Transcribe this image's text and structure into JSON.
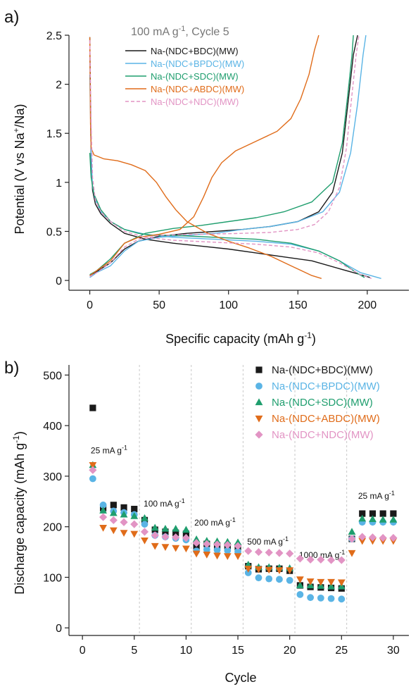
{
  "colors": {
    "NDC_BDC": "#1a1a1a",
    "NDC_BPDC": "#5ab4e5",
    "NDC_SDC": "#1f9e6e",
    "NDC_ABDC": "#e06c1a",
    "NDC_NDC": "#e294c4",
    "axis": "#222222",
    "divider": "#c8c8c8"
  },
  "chart_data": [
    {
      "panel_label": "a)",
      "type": "line",
      "title_main": "100 mA g",
      "title_sup": "-1",
      "title_tail": ", Cycle 5",
      "xlabel_main": "Specific capacity (mAh g",
      "xlabel_sup": "-1",
      "xlabel_tail": ")",
      "ylabel_pre": "Potential (V vs Na",
      "ylabel_sup": "+",
      "ylabel_post": "/Na)",
      "xlim": [
        -15,
        230
      ],
      "ylim": [
        -0.1,
        2.5
      ],
      "x_ticks": [
        0,
        50,
        100,
        150,
        200
      ],
      "x_tick_labels": [
        "0",
        "50",
        "100",
        "150",
        "200"
      ],
      "y_ticks": [
        0,
        0.5,
        1,
        1.5,
        2,
        2.5
      ],
      "y_tick_labels": [
        "0",
        "0.5",
        "1",
        "1.5",
        "2",
        "2.5"
      ],
      "legend_position": "top-left",
      "series": [
        {
          "name": "Na-(NDC+BDC)(MW)",
          "color_key": "NDC_BDC",
          "dash": false,
          "discharge": [
            [
              0,
              2.48
            ],
            [
              0.5,
              1.8
            ],
            [
              1,
              1.2
            ],
            [
              2,
              0.92
            ],
            [
              4,
              0.78
            ],
            [
              8,
              0.68
            ],
            [
              15,
              0.58
            ],
            [
              25,
              0.48
            ],
            [
              40,
              0.42
            ],
            [
              60,
              0.38
            ],
            [
              80,
              0.35
            ],
            [
              100,
              0.32
            ],
            [
              120,
              0.28
            ],
            [
              140,
              0.24
            ],
            [
              160,
              0.2
            ],
            [
              180,
              0.12
            ],
            [
              195,
              0.06
            ],
            [
              202,
              0.03
            ]
          ],
          "charge": [
            [
              0,
              0.05
            ],
            [
              5,
              0.09
            ],
            [
              15,
              0.18
            ],
            [
              25,
              0.32
            ],
            [
              35,
              0.4
            ],
            [
              50,
              0.45
            ],
            [
              70,
              0.48
            ],
            [
              90,
              0.5
            ],
            [
              110,
              0.52
            ],
            [
              130,
              0.55
            ],
            [
              150,
              0.6
            ],
            [
              165,
              0.7
            ],
            [
              175,
              0.9
            ],
            [
              182,
              1.3
            ],
            [
              186,
              1.8
            ],
            [
              190,
              2.3
            ],
            [
              193,
              2.5
            ]
          ]
        },
        {
          "name": "Na-(NDC+BPDC)(MW)",
          "color_key": "NDC_BPDC",
          "dash": false,
          "discharge": [
            [
              0,
              2.1
            ],
            [
              1,
              1.3
            ],
            [
              2,
              0.95
            ],
            [
              4,
              0.82
            ],
            [
              8,
              0.7
            ],
            [
              15,
              0.6
            ],
            [
              25,
              0.52
            ],
            [
              40,
              0.47
            ],
            [
              60,
              0.44
            ],
            [
              90,
              0.42
            ],
            [
              120,
              0.4
            ],
            [
              145,
              0.37
            ],
            [
              165,
              0.3
            ],
            [
              180,
              0.2
            ],
            [
              195,
              0.08
            ],
            [
              210,
              0.02
            ]
          ],
          "charge": [
            [
              0,
              0.03
            ],
            [
              5,
              0.08
            ],
            [
              15,
              0.15
            ],
            [
              25,
              0.3
            ],
            [
              35,
              0.4
            ],
            [
              50,
              0.44
            ],
            [
              70,
              0.46
            ],
            [
              90,
              0.48
            ],
            [
              110,
              0.52
            ],
            [
              130,
              0.55
            ],
            [
              150,
              0.6
            ],
            [
              168,
              0.7
            ],
            [
              180,
              0.9
            ],
            [
              188,
              1.3
            ],
            [
              193,
              1.8
            ],
            [
              197,
              2.3
            ],
            [
              199,
              2.5
            ]
          ]
        },
        {
          "name": "Na-(NDC+SDC)(MW)",
          "color_key": "NDC_SDC",
          "dash": false,
          "discharge": [
            [
              0,
              1.3
            ],
            [
              1,
              1.05
            ],
            [
              3,
              0.88
            ],
            [
              8,
              0.72
            ],
            [
              15,
              0.6
            ],
            [
              25,
              0.52
            ],
            [
              35,
              0.48
            ],
            [
              45,
              0.46
            ],
            [
              60,
              0.46
            ],
            [
              90,
              0.44
            ],
            [
              120,
              0.42
            ],
            [
              145,
              0.38
            ],
            [
              165,
              0.3
            ],
            [
              180,
              0.2
            ],
            [
              192,
              0.08
            ],
            [
              198,
              0.03
            ]
          ],
          "charge": [
            [
              0,
              0.06
            ],
            [
              5,
              0.1
            ],
            [
              15,
              0.22
            ],
            [
              25,
              0.38
            ],
            [
              40,
              0.48
            ],
            [
              60,
              0.53
            ],
            [
              80,
              0.56
            ],
            [
              100,
              0.6
            ],
            [
              120,
              0.64
            ],
            [
              140,
              0.7
            ],
            [
              160,
              0.8
            ],
            [
              175,
              1.0
            ],
            [
              182,
              1.4
            ],
            [
              186,
              1.9
            ],
            [
              189,
              2.3
            ],
            [
              190,
              2.5
            ]
          ]
        },
        {
          "name": "Na-(NDC+ABDC)(MW)",
          "color_key": "NDC_ABDC",
          "dash": false,
          "discharge": [
            [
              0,
              2.48
            ],
            [
              0.5,
              1.6
            ],
            [
              1,
              1.35
            ],
            [
              3,
              1.28
            ],
            [
              10,
              1.24
            ],
            [
              20,
              1.22
            ],
            [
              30,
              1.18
            ],
            [
              40,
              1.12
            ],
            [
              48,
              1.0
            ],
            [
              55,
              0.85
            ],
            [
              62,
              0.72
            ],
            [
              70,
              0.6
            ],
            [
              85,
              0.48
            ],
            [
              100,
              0.4
            ],
            [
              115,
              0.33
            ],
            [
              130,
              0.25
            ],
            [
              145,
              0.15
            ],
            [
              160,
              0.05
            ],
            [
              167,
              0.02
            ]
          ],
          "charge": [
            [
              0,
              0.05
            ],
            [
              5,
              0.1
            ],
            [
              15,
              0.2
            ],
            [
              25,
              0.38
            ],
            [
              35,
              0.44
            ],
            [
              50,
              0.47
            ],
            [
              65,
              0.52
            ],
            [
              75,
              0.65
            ],
            [
              82,
              0.85
            ],
            [
              88,
              1.05
            ],
            [
              95,
              1.2
            ],
            [
              105,
              1.32
            ],
            [
              120,
              1.42
            ],
            [
              135,
              1.52
            ],
            [
              145,
              1.65
            ],
            [
              152,
              1.85
            ],
            [
              158,
              2.1
            ],
            [
              162,
              2.35
            ],
            [
              165,
              2.5
            ]
          ]
        },
        {
          "name": "Na-(NDC+NDC)(MW)",
          "color_key": "NDC_NDC",
          "dash": true,
          "discharge": [
            [
              0,
              2.45
            ],
            [
              1,
              1.6
            ],
            [
              2,
              1.05
            ],
            [
              4,
              0.82
            ],
            [
              8,
              0.7
            ],
            [
              15,
              0.6
            ],
            [
              25,
              0.5
            ],
            [
              40,
              0.44
            ],
            [
              60,
              0.41
            ],
            [
              90,
              0.39
            ],
            [
              120,
              0.37
            ],
            [
              145,
              0.34
            ],
            [
              165,
              0.28
            ],
            [
              180,
              0.18
            ],
            [
              195,
              0.06
            ],
            [
              203,
              0.02
            ]
          ],
          "charge": [
            [
              0,
              0.04
            ],
            [
              5,
              0.08
            ],
            [
              15,
              0.18
            ],
            [
              25,
              0.34
            ],
            [
              35,
              0.42
            ],
            [
              50,
              0.46
            ],
            [
              80,
              0.47
            ],
            [
              110,
              0.48
            ],
            [
              130,
              0.49
            ],
            [
              150,
              0.52
            ],
            [
              162,
              0.57
            ],
            [
              172,
              0.7
            ],
            [
              180,
              0.95
            ],
            [
              185,
              1.35
            ],
            [
              189,
              1.9
            ],
            [
              192,
              2.3
            ],
            [
              194,
              2.5
            ]
          ]
        }
      ]
    },
    {
      "panel_label": "b)",
      "type": "scatter",
      "xlabel": "Cycle",
      "ylabel_main": "Discharge capacity (mAh g",
      "ylabel_sup": "-1",
      "ylabel_tail": ")",
      "xlim": [
        -1.3,
        31.5
      ],
      "ylim": [
        -15,
        520
      ],
      "x_ticks": [
        0,
        5,
        10,
        15,
        20,
        25,
        30
      ],
      "x_tick_labels": [
        "0",
        "5",
        "10",
        "15",
        "20",
        "25",
        "30"
      ],
      "y_ticks": [
        0,
        100,
        200,
        300,
        400,
        500
      ],
      "y_tick_labels": [
        "0",
        "100",
        "200",
        "300",
        "400",
        "500"
      ],
      "dividers": [
        5.5,
        10.5,
        15.5,
        20.5,
        25.5
      ],
      "legend_position": "top-right",
      "annotations": [
        {
          "main": "25 mA g",
          "sup": "-1",
          "x": 0.8,
          "y": 345
        },
        {
          "main": "100 mA g",
          "sup": "-1",
          "x": 5.9,
          "y": 240
        },
        {
          "main": "200 mA g",
          "sup": "-1",
          "x": 10.8,
          "y": 202
        },
        {
          "main": "500 mA g",
          "sup": "-1",
          "x": 15.9,
          "y": 165
        },
        {
          "main": "1000 mA g",
          "sup": "-1",
          "x": 20.9,
          "y": 138
        },
        {
          "main": "25 mA g",
          "sup": "-1",
          "x": 26.6,
          "y": 255
        }
      ],
      "x": [
        1,
        2,
        3,
        4,
        5,
        6,
        7,
        8,
        9,
        10,
        11,
        12,
        13,
        14,
        15,
        16,
        17,
        18,
        19,
        20,
        21,
        22,
        23,
        24,
        25,
        26,
        27,
        28,
        29,
        30
      ],
      "series": [
        {
          "name": "Na-(NDC+BDC)(MW)",
          "color_key": "NDC_BDC",
          "marker": "square",
          "values": [
            435,
            237,
            243,
            238,
            235,
            213,
            194,
            190,
            188,
            186,
            161,
            166,
            163,
            162,
            160,
            122,
            116,
            117,
            117,
            113,
            84,
            81,
            80,
            79,
            78,
            176,
            226,
            226,
            226,
            226
          ]
        },
        {
          "name": "Na-(NDC+BPDC)(MW)",
          "color_key": "NDC_BPDC",
          "marker": "circle",
          "values": [
            295,
            243,
            231,
            228,
            224,
            205,
            183,
            180,
            177,
            174,
            152,
            155,
            154,
            153,
            151,
            109,
            99,
            97,
            96,
            94,
            66,
            60,
            59,
            58,
            57,
            176,
            209,
            209,
            209,
            209
          ]
        },
        {
          "name": "Na-(NDC+SDC)(MW)",
          "color_key": "NDC_SDC",
          "marker": "triangle-up",
          "values": [
            322,
            232,
            227,
            224,
            221,
            217,
            198,
            196,
            196,
            194,
            175,
            172,
            171,
            170,
            169,
            125,
            120,
            120,
            119,
            118,
            84,
            84,
            83,
            82,
            82,
            190,
            216,
            215,
            214,
            214
          ]
        },
        {
          "name": "Na-(NDC+ABDC)(MW)",
          "color_key": "NDC_ABDC",
          "marker": "triangle-down",
          "values": [
            322,
            198,
            193,
            188,
            186,
            173,
            162,
            160,
            158,
            157,
            147,
            145,
            143,
            142,
            142,
            117,
            116,
            115,
            114,
            114,
            96,
            92,
            91,
            91,
            90,
            148,
            172,
            172,
            172,
            172
          ]
        },
        {
          "name": "Na-(NDC+NDC)(MW)",
          "color_key": "NDC_NDC",
          "marker": "diamond",
          "values": [
            312,
            219,
            213,
            209,
            205,
            190,
            183,
            180,
            179,
            178,
            168,
            166,
            165,
            164,
            162,
            152,
            150,
            149,
            148,
            147,
            137,
            135,
            135,
            134,
            134,
            176,
            180,
            179,
            178,
            178
          ]
        }
      ]
    }
  ]
}
